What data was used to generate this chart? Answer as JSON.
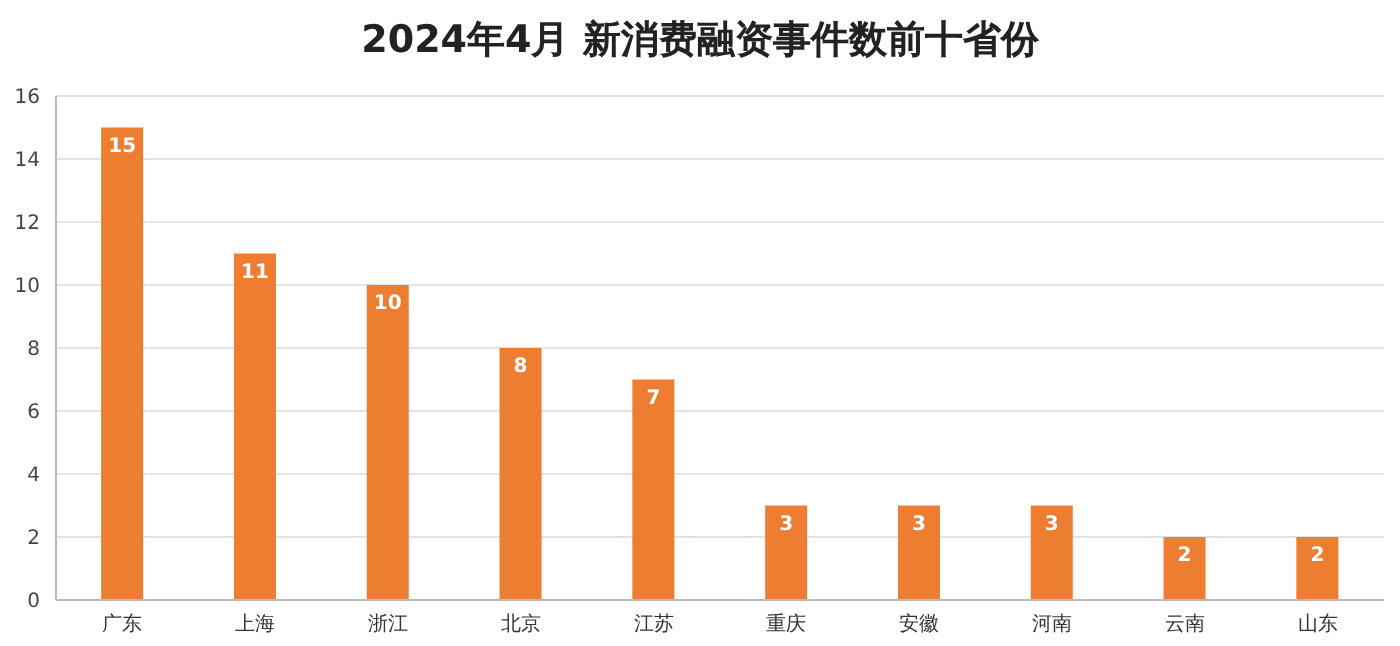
{
  "chart_data": {
    "type": "bar",
    "title": "2024年4月 新消费融资事件数前十省份",
    "categories": [
      "广东",
      "上海",
      "浙江",
      "北京",
      "江苏",
      "重庆",
      "安徽",
      "河南",
      "云南",
      "山东"
    ],
    "values": [
      15,
      11,
      10,
      8,
      7,
      3,
      3,
      3,
      2,
      2
    ],
    "color": "#ed7d31",
    "ylim": [
      0,
      16
    ],
    "yticks": [
      0,
      2,
      4,
      6,
      8,
      10,
      12,
      14,
      16
    ],
    "grid": "y",
    "data_labels": true
  }
}
